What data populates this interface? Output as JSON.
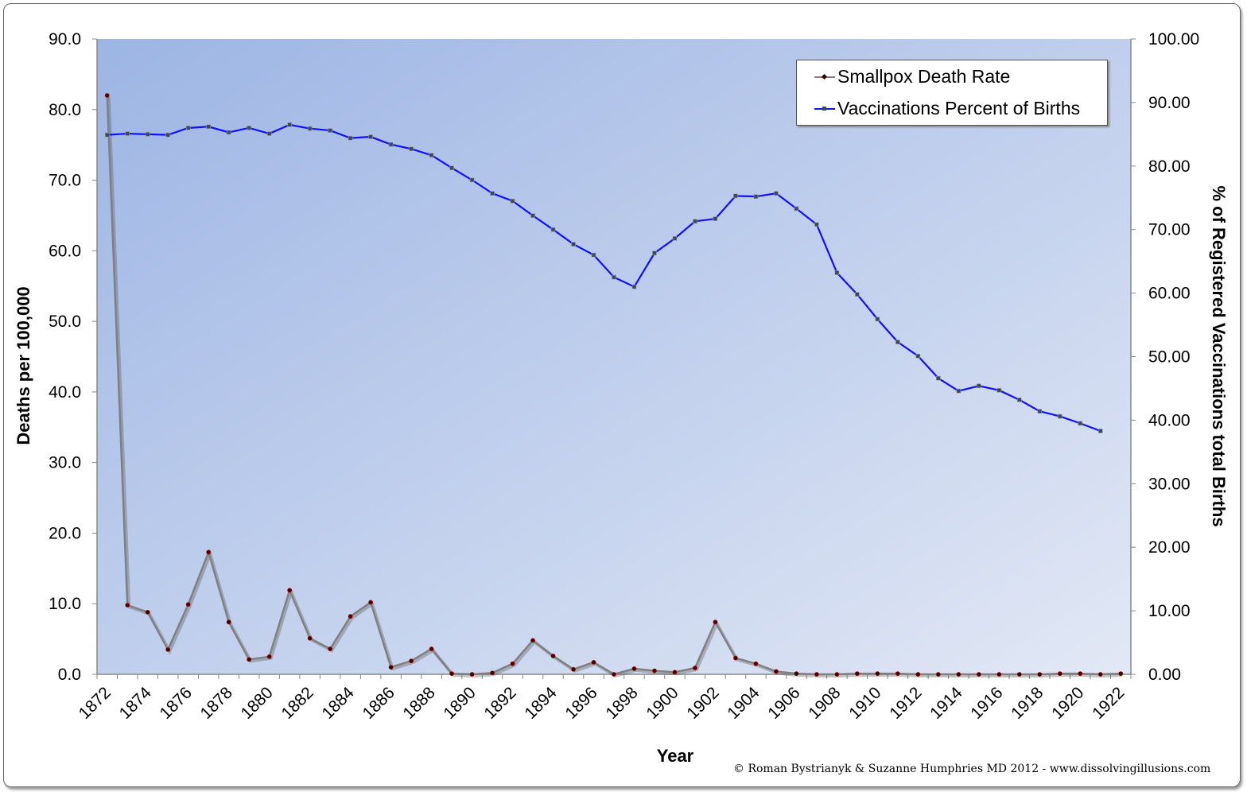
{
  "chart_data": {
    "type": "line",
    "xlabel": "Year",
    "ylabel_left": "Deaths per 100,000",
    "ylabel_right": "% of Registered Vaccinations total Births",
    "ylim_left": [
      0,
      90
    ],
    "ylim_right": [
      0,
      100
    ],
    "yticks_left": [
      "0.0",
      "10.0",
      "20.0",
      "30.0",
      "40.0",
      "50.0",
      "60.0",
      "70.0",
      "80.0",
      "90.0"
    ],
    "yticks_right": [
      "0.00",
      "10.00",
      "20.00",
      "30.00",
      "40.00",
      "50.00",
      "60.00",
      "70.00",
      "80.00",
      "90.00",
      "100.00"
    ],
    "x": [
      1872,
      1873,
      1874,
      1875,
      1876,
      1877,
      1878,
      1879,
      1880,
      1881,
      1882,
      1883,
      1884,
      1885,
      1886,
      1887,
      1888,
      1889,
      1890,
      1891,
      1892,
      1893,
      1894,
      1895,
      1896,
      1897,
      1898,
      1899,
      1900,
      1901,
      1902,
      1903,
      1904,
      1905,
      1906,
      1907,
      1908,
      1909,
      1910,
      1911,
      1912,
      1913,
      1914,
      1915,
      1916,
      1917,
      1918,
      1919,
      1920,
      1921,
      1922
    ],
    "xtick_labels": [
      "1872",
      "1874",
      "1876",
      "1878",
      "1880",
      "1882",
      "1884",
      "1886",
      "1888",
      "1890",
      "1892",
      "1894",
      "1896",
      "1898",
      "1900",
      "1902",
      "1904",
      "1906",
      "1908",
      "1910",
      "1912",
      "1914",
      "1916",
      "1918",
      "1920",
      "1922"
    ],
    "grid": false,
    "legend_position": "top-right",
    "series": [
      {
        "name": "Smallpox Death Rate",
        "axis": "left",
        "color": "#808080",
        "marker_color": "#3a0000",
        "values": [
          82.0,
          9.8,
          8.8,
          3.5,
          9.9,
          17.3,
          7.4,
          2.1,
          2.5,
          11.9,
          5.1,
          3.6,
          8.2,
          10.2,
          1.0,
          1.9,
          3.6,
          0.1,
          0.0,
          0.2,
          1.5,
          4.8,
          2.6,
          0.7,
          1.7,
          0.0,
          0.8,
          0.5,
          0.3,
          0.9,
          7.4,
          2.3,
          1.5,
          0.4,
          0.1,
          0.0,
          0.0,
          0.1,
          0.1,
          0.1,
          0.0,
          0.0,
          0.0,
          0.0,
          0.0,
          0.0,
          0.0,
          0.1,
          0.1,
          0.0,
          0.1
        ]
      },
      {
        "name": "Vaccinations Percent of Births",
        "axis": "right",
        "color": "#1010ff",
        "marker_color": "#3a4a5a",
        "values": [
          84.9,
          85.1,
          85.0,
          84.9,
          86.0,
          86.2,
          85.3,
          86.0,
          85.1,
          86.5,
          85.9,
          85.6,
          84.4,
          84.6,
          83.4,
          82.7,
          81.7,
          79.7,
          77.8,
          75.7,
          74.5,
          72.2,
          70.0,
          67.7,
          66.0,
          62.5,
          61.0,
          66.3,
          68.6,
          71.3,
          71.7,
          75.3,
          75.2,
          75.7,
          73.3,
          70.8,
          63.2,
          59.8,
          55.9,
          52.3,
          50.1,
          46.6,
          44.6,
          45.4,
          44.7,
          43.2,
          41.4,
          40.6,
          39.5,
          38.3,
          null
        ]
      }
    ],
    "background_gradient": [
      "#9db5e4",
      "#e2e8f5"
    ]
  },
  "credit": "© Roman Bystrianyk & Suzanne Humphries MD 2012 - www.dissolvingillusions.com"
}
